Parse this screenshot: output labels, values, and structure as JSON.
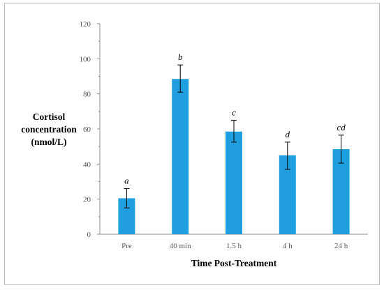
{
  "chart_data": {
    "type": "bar",
    "title": "",
    "xlabel": "Time Post-Treatment",
    "ylabel_lines": [
      "Cortisol",
      "concentration",
      "(nmol/L)"
    ],
    "ylim": [
      0,
      120
    ],
    "yticks": [
      0,
      20,
      40,
      60,
      80,
      100,
      120
    ],
    "grid": false,
    "bar_color": "#1f9fdf",
    "categories": [
      "Pre",
      "40 min",
      "1.5 h",
      "4 h",
      "24 h"
    ],
    "values": [
      20.5,
      88.5,
      58.5,
      45.0,
      48.5
    ],
    "error_low": [
      15.0,
      81.0,
      52.5,
      37.0,
      40.5
    ],
    "error_high": [
      26.0,
      96.5,
      65.0,
      52.5,
      56.5
    ],
    "significance_letters": [
      "a",
      "b",
      "c",
      "d",
      "cd"
    ]
  }
}
